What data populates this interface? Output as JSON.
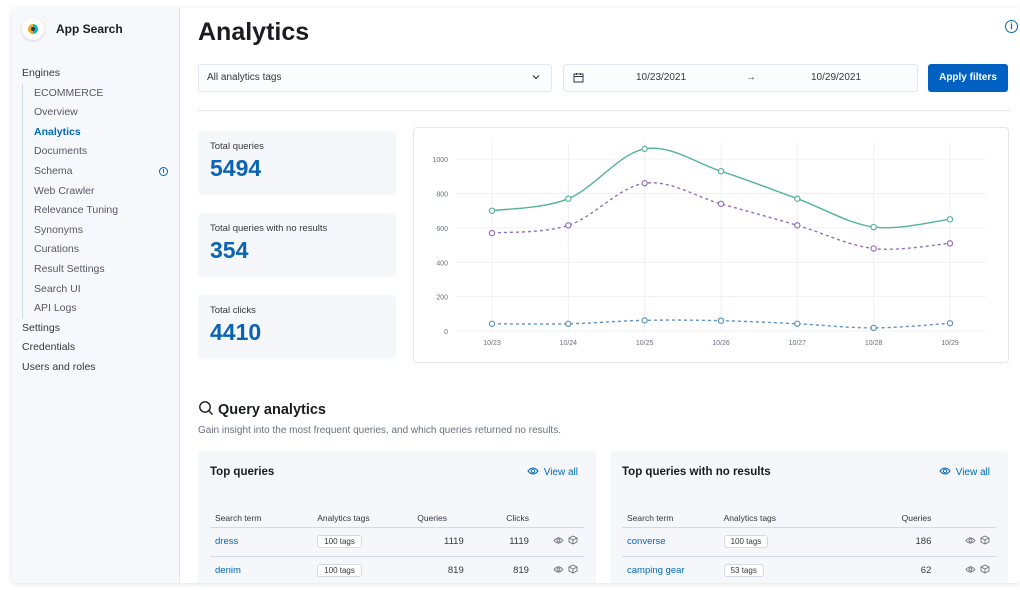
{
  "app": {
    "title": "App Search"
  },
  "sidebar": {
    "items": [
      {
        "label": "Engines"
      },
      {
        "label": "ECOMMERCE"
      },
      {
        "label": "Overview"
      },
      {
        "label": "Analytics"
      },
      {
        "label": "Documents"
      },
      {
        "label": "Schema"
      },
      {
        "label": "Web Crawler"
      },
      {
        "label": "Relevance Tuning"
      },
      {
        "label": "Synonyms"
      },
      {
        "label": "Curations"
      },
      {
        "label": "Result Settings"
      },
      {
        "label": "Search UI"
      },
      {
        "label": "API Logs"
      },
      {
        "label": "Settings"
      },
      {
        "label": "Credentials"
      },
      {
        "label": "Users and roles"
      }
    ]
  },
  "header": {
    "title": "Analytics"
  },
  "filters": {
    "tags_value": "All analytics tags",
    "date_start": "10/23/2021",
    "date_arrow": "→",
    "date_end": "10/29/2021",
    "apply_label": "Apply filters"
  },
  "stats": [
    {
      "label": "Total queries",
      "value": "5494"
    },
    {
      "label": "Total queries with no results",
      "value": "354"
    },
    {
      "label": "Total clicks",
      "value": "4410"
    }
  ],
  "chart_data": {
    "type": "line",
    "title": "",
    "xlabel": "",
    "ylabel": "",
    "categories": [
      "10/23",
      "10/24",
      "10/25",
      "10/26",
      "10/27",
      "10/28",
      "10/29"
    ],
    "y_ticks": [
      "0",
      "200",
      "400",
      "600",
      "800",
      "1000"
    ],
    "ylim": [
      0,
      1100
    ],
    "grid": true,
    "series": [
      {
        "values": [
          700,
          770,
          1060,
          930,
          770,
          605,
          650
        ],
        "color": "#54b399",
        "style": "solid"
      },
      {
        "values": [
          570,
          615,
          860,
          740,
          615,
          480,
          510
        ],
        "color": "#9170b8",
        "style": "dashed"
      },
      {
        "values": [
          42,
          42,
          62,
          60,
          42,
          18,
          45
        ],
        "color": "#6092c0",
        "style": "dashed"
      }
    ]
  },
  "query_analytics": {
    "title": "Query analytics",
    "description": "Gain insight into the most frequent queries, and which queries returned no results."
  },
  "top_queries": {
    "title": "Top queries",
    "view_all": "View all",
    "columns": [
      "Search term",
      "Analytics tags",
      "Queries",
      "Clicks"
    ],
    "rows": [
      {
        "term": "dress",
        "tags": "100 tags",
        "queries": "1119",
        "clicks": "1119"
      },
      {
        "term": "denim",
        "tags": "100 tags",
        "queries": "819",
        "clicks": "819"
      }
    ]
  },
  "no_results": {
    "title": "Top queries with no results",
    "view_all": "View all",
    "columns": [
      "Search term",
      "Analytics tags",
      "Queries"
    ],
    "rows": [
      {
        "term": "converse",
        "tags": "100 tags",
        "queries": "186"
      },
      {
        "term": "camping gear",
        "tags": "53 tags",
        "queries": "62"
      }
    ]
  },
  "icons": {
    "info": "info-icon",
    "calendar": "calendar-icon",
    "eye": "eye-icon",
    "cube": "cube-icon",
    "search": "magnifier-icon"
  }
}
